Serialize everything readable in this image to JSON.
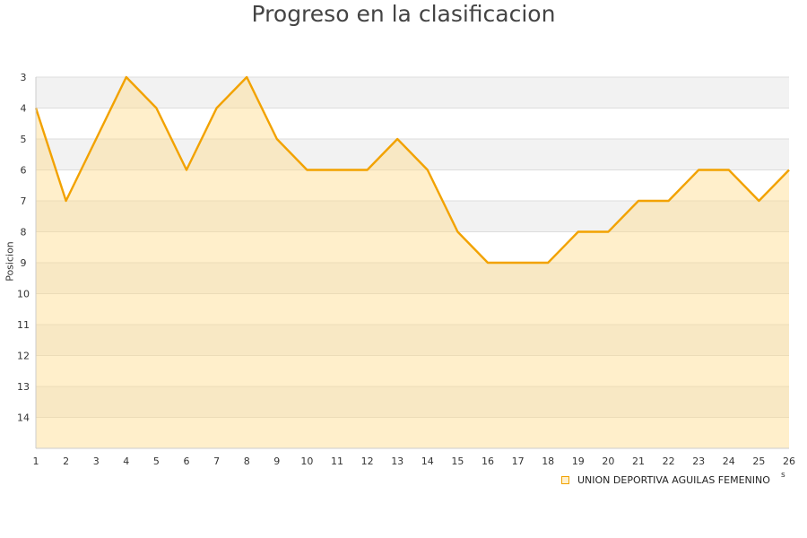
{
  "chart_data": {
    "type": "area",
    "title": "Progreso en la clasificacion",
    "ylabel": "Posicion",
    "xlabel": "",
    "x_axis_caption": "s",
    "x": [
      1,
      2,
      3,
      4,
      5,
      6,
      7,
      8,
      9,
      10,
      11,
      12,
      13,
      14,
      15,
      16,
      17,
      18,
      19,
      20,
      21,
      22,
      23,
      24,
      25,
      26
    ],
    "ylim": [
      3,
      15
    ],
    "y_inverted": true,
    "y_ticks": [
      3,
      4,
      5,
      6,
      7,
      8,
      9,
      10,
      11,
      12,
      13,
      14
    ],
    "series": [
      {
        "name": "UNION DEPORTIVA AGUILAS FEMENINO",
        "values": [
          4,
          7,
          5,
          3,
          4,
          6,
          4,
          3,
          5,
          6,
          6,
          6,
          5,
          6,
          8,
          9,
          9,
          9,
          8,
          8,
          7,
          7,
          6,
          6,
          7,
          6
        ],
        "line_color": "#f2a200",
        "fill_color": "#ffeec9"
      }
    ],
    "grid": true,
    "legend_position": "bottom-right",
    "band_colors": [
      "#f2f2f2",
      "#ffffff"
    ]
  }
}
